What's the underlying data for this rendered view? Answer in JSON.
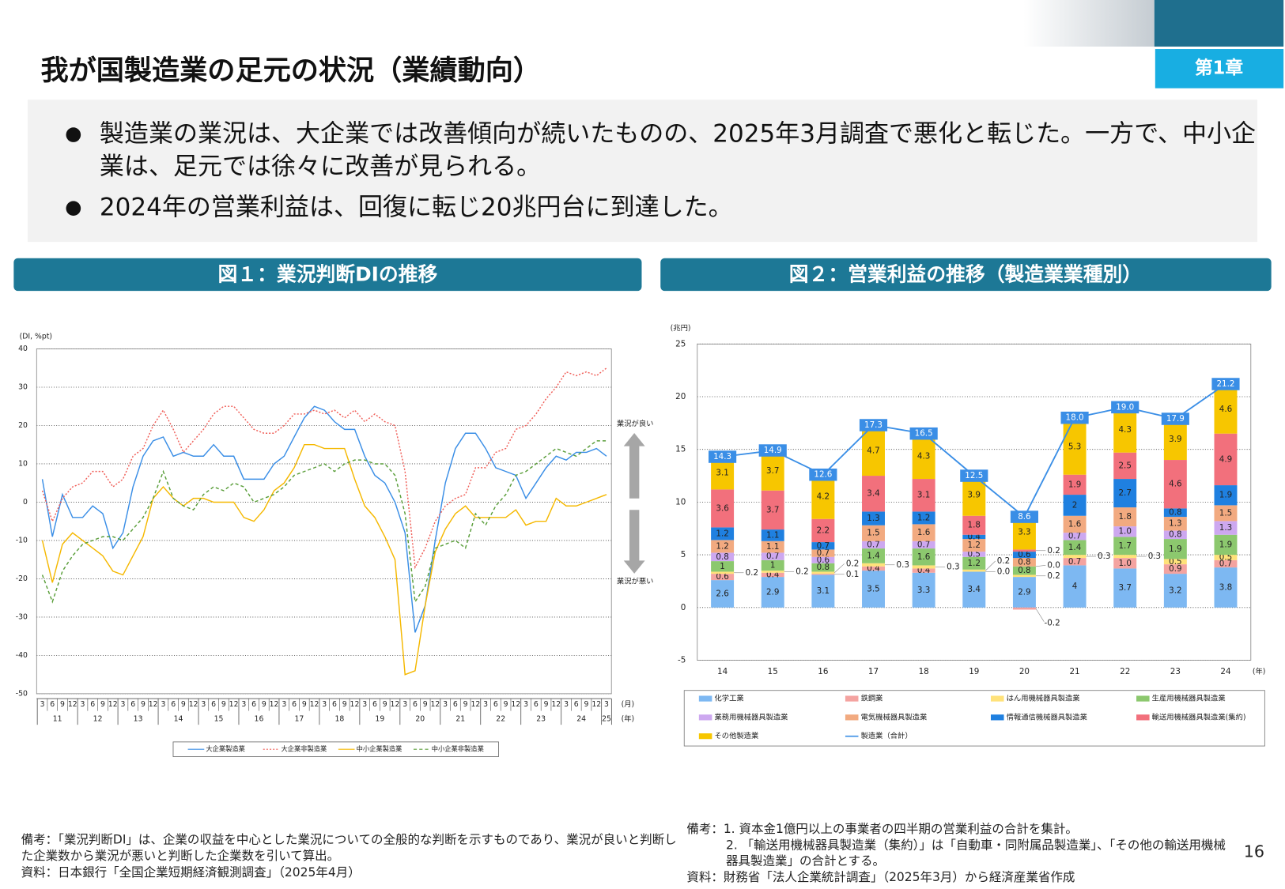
{
  "header": {
    "title": "我が国製造業の足元の状況（業績動向）",
    "chapter": "第1章"
  },
  "bullets": [
    [
      "製造業の業況は、大企業では改善傾向が続いたものの、2025年3月調査で悪化と転じた。一方で、中小企",
      "業は、足元では徐々に改善が見られる。"
    ],
    [
      "2024年の営業利益は、回復に転じ20兆円台に到達した。"
    ]
  ],
  "chart_data": [
    {
      "type": "line",
      "title": "図１：業況判断DIの推移",
      "ylabel": "(DI, %pt)",
      "categories": [
        "3",
        "6",
        "9",
        "12",
        "3",
        "6",
        "9",
        "12",
        "3",
        "6",
        "9",
        "12",
        "3",
        "6",
        "9",
        "12",
        "3",
        "6",
        "9",
        "12",
        "3",
        "6",
        "9",
        "12",
        "3",
        "6",
        "9",
        "12",
        "3",
        "6",
        "9",
        "12",
        "3",
        "6",
        "9",
        "12",
        "3",
        "6",
        "9",
        "12",
        "3",
        "6",
        "9",
        "12",
        "3",
        "6",
        "9",
        "12",
        "3",
        "6",
        "9",
        "12",
        "3",
        "6",
        "9",
        "12",
        "3"
      ],
      "category_groups": [
        "11",
        "12",
        "13",
        "14",
        "15",
        "16",
        "17",
        "18",
        "19",
        "20",
        "21",
        "22",
        "23",
        "24",
        "25"
      ],
      "x_unit_labels": [
        "(月)",
        "(年)"
      ],
      "annotations": [
        "業況が良い",
        "業況が悪い"
      ],
      "ylim": [
        -50,
        40
      ],
      "yticks": [
        -50,
        -40,
        -30,
        -20,
        -10,
        0,
        10,
        20,
        30,
        40
      ],
      "grid": true,
      "series": [
        {
          "name": "大企業製造業",
          "color": "#3a8ee6",
          "style": "solid",
          "values": [
            6,
            -9,
            2,
            -4,
            -4,
            -1,
            -3,
            -12,
            -8,
            4,
            12,
            16,
            17,
            12,
            13,
            12,
            12,
            15,
            12,
            12,
            6,
            6,
            6,
            10,
            12,
            17,
            22,
            25,
            24,
            21,
            19,
            19,
            12,
            7,
            5,
            0,
            -8,
            -34,
            -27,
            -10,
            5,
            14,
            18,
            18,
            14,
            9,
            8,
            7,
            1,
            5,
            9,
            12,
            11,
            13,
            13,
            14,
            12
          ]
        },
        {
          "name": "大企業非製造業",
          "color": "#f0605a",
          "style": "dotted",
          "values": [
            3,
            -5,
            1,
            4,
            5,
            8,
            8,
            4,
            6,
            12,
            14,
            20,
            24,
            19,
            13,
            16,
            19,
            23,
            25,
            25,
            22,
            19,
            18,
            18,
            20,
            23,
            23,
            24,
            23,
            24,
            22,
            24,
            21,
            23,
            21,
            20,
            8,
            -17,
            -12,
            -5,
            -1,
            1,
            2,
            9,
            9,
            13,
            14,
            19,
            20,
            23,
            27,
            30,
            34,
            33,
            34,
            33,
            35
          ]
        },
        {
          "name": "中小企業製造業",
          "color": "#f5b800",
          "style": "solid",
          "values": [
            -10,
            -21,
            -11,
            -8,
            -10,
            -12,
            -14,
            -18,
            -19,
            -14,
            -9,
            1,
            4,
            1,
            -1,
            1,
            1,
            0,
            0,
            0,
            -4,
            -5,
            -2,
            3,
            5,
            9,
            15,
            15,
            14,
            14,
            14,
            6,
            -1,
            -4,
            -9,
            -15,
            -45,
            -44,
            -27,
            -13,
            -7,
            -3,
            -1,
            -4,
            -4,
            -4,
            -4,
            -2,
            -6,
            -5,
            -5,
            1,
            -1,
            -1,
            0,
            1,
            2
          ]
        },
        {
          "name": "中小企業非製造業",
          "color": "#5a9e3a",
          "style": "dashed",
          "values": [
            -19,
            -26,
            -18,
            -14,
            -11,
            -10,
            -9,
            -9,
            -10,
            -7,
            -4,
            1,
            8,
            1,
            -1,
            -2,
            2,
            4,
            3,
            5,
            4,
            0,
            1,
            2,
            4,
            7,
            8,
            9,
            10,
            8,
            10,
            11,
            11,
            10,
            10,
            7,
            -3,
            -26,
            -22,
            -12,
            -11,
            -10,
            -12,
            -3,
            -6,
            -1,
            2,
            7,
            8,
            10,
            12,
            14,
            13,
            12,
            14,
            16,
            16
          ]
        }
      ]
    },
    {
      "type": "bar",
      "stacked": true,
      "title": "図２：営業利益の推移（製造業業種別）",
      "ylabel": "(兆円)",
      "xlabel": "(年)",
      "categories": [
        "14",
        "15",
        "16",
        "17",
        "18",
        "19",
        "20",
        "21",
        "22",
        "23",
        "24"
      ],
      "ylim": [
        -5,
        25
      ],
      "yticks": [
        -5,
        0,
        5,
        10,
        15,
        20,
        25
      ],
      "grid": true,
      "series": [
        {
          "name": "化学工業",
          "color": "#7db8f2",
          "values": [
            2.6,
            2.9,
            3.1,
            3.5,
            3.3,
            3.4,
            2.9,
            4.0,
            3.7,
            3.2,
            3.8
          ]
        },
        {
          "name": "鉄鋼業",
          "color": "#f4a3a0",
          "values": [
            0.6,
            0.4,
            0.1,
            0.4,
            0.4,
            0.0,
            -0.2,
            0.7,
            1.0,
            0.9,
            0.7
          ],
          "value_labels": [
            "0.6",
            "0.4",
            "0.1",
            "0.4",
            "0.4",
            "0.0",
            "-0.2",
            "0.7",
            "1.0",
            "0.9",
            "0.7"
          ]
        },
        {
          "name": "はん用機械器具製造業",
          "color": "#ffe27a",
          "values": [
            0.2,
            0.2,
            0.2,
            0.3,
            0.3,
            0.2,
            0.2,
            0.3,
            0.3,
            0.5,
            0.5
          ]
        },
        {
          "name": "生産用機械器具製造業",
          "color": "#8cc86e",
          "values": [
            1.0,
            1.0,
            0.8,
            1.4,
            1.6,
            1.2,
            0.8,
            1.4,
            1.7,
            1.9,
            1.9
          ]
        },
        {
          "name": "業務用機械器具製造業",
          "color": "#cda8f0",
          "values": [
            0.8,
            0.7,
            0.6,
            0.7,
            0.7,
            0.5,
            0.0,
            0.7,
            1.0,
            0.8,
            1.3
          ],
          "value_labels": [
            "0.8",
            "0.7",
            "0.6",
            "0.7",
            "0.7",
            "0.5",
            "0.0",
            "0.7",
            "1.0",
            "0.8",
            "1.3"
          ]
        },
        {
          "name": "電気機械器具製造業",
          "color": "#f2aa80",
          "values": [
            1.2,
            1.1,
            0.7,
            1.5,
            1.6,
            1.2,
            0.8,
            1.6,
            1.8,
            1.3,
            1.5
          ]
        },
        {
          "name": "情報通信機械器具製造業",
          "color": "#1f80e0",
          "values": [
            1.2,
            1.1,
            0.7,
            1.3,
            1.2,
            0.4,
            0.6,
            2.0,
            2.7,
            0.8,
            1.9
          ]
        },
        {
          "name": "輸送用機械器具製造業(集約)",
          "color": "#f2707c",
          "values": [
            3.6,
            3.7,
            2.2,
            3.4,
            3.1,
            1.8,
            0.2,
            1.9,
            2.5,
            4.6,
            4.9
          ]
        },
        {
          "name": "その他製造業",
          "color": "#f7c600",
          "values": [
            3.1,
            3.7,
            4.2,
            4.7,
            4.3,
            3.9,
            3.3,
            5.3,
            4.3,
            3.9,
            4.6
          ]
        },
        {
          "name": "製造業（合計）",
          "type": "line",
          "color": "#3a8ee6",
          "values": [
            14.3,
            14.9,
            12.6,
            17.3,
            16.5,
            12.5,
            8.6,
            18.0,
            19.0,
            17.9,
            21.2
          ],
          "value_labels": [
            "14.3",
            "14.9",
            "12.6",
            "17.3",
            "16.5",
            "12.5",
            "8.6",
            "18.0",
            "19.0",
            "17.9",
            "21.2"
          ]
        }
      ]
    }
  ],
  "notes": {
    "left": [
      "備考：「業況判断DI」は、企業の収益を中心とした業況についての全般的な判断を示すものであり、業況が良いと判断し",
      "た企業数から業況が悪いと判断した企業数を引いて算出。",
      "資料：日本銀行「全国企業短期経済観測調査」（2025年4月）"
    ],
    "right": [
      "備考：1.  資本金1億円以上の事業者の四半期の営業利益の合計を集計。",
      "2. 「輸送用機械器具製造業（集約）」は「自動車・同附属品製造業」、「その他の輸送用機械",
      "器具製造業」の合計とする。",
      "資料：財務省「法人企業統計調査」（2025年3月）から経済産業省作成"
    ]
  },
  "page_number": "16"
}
